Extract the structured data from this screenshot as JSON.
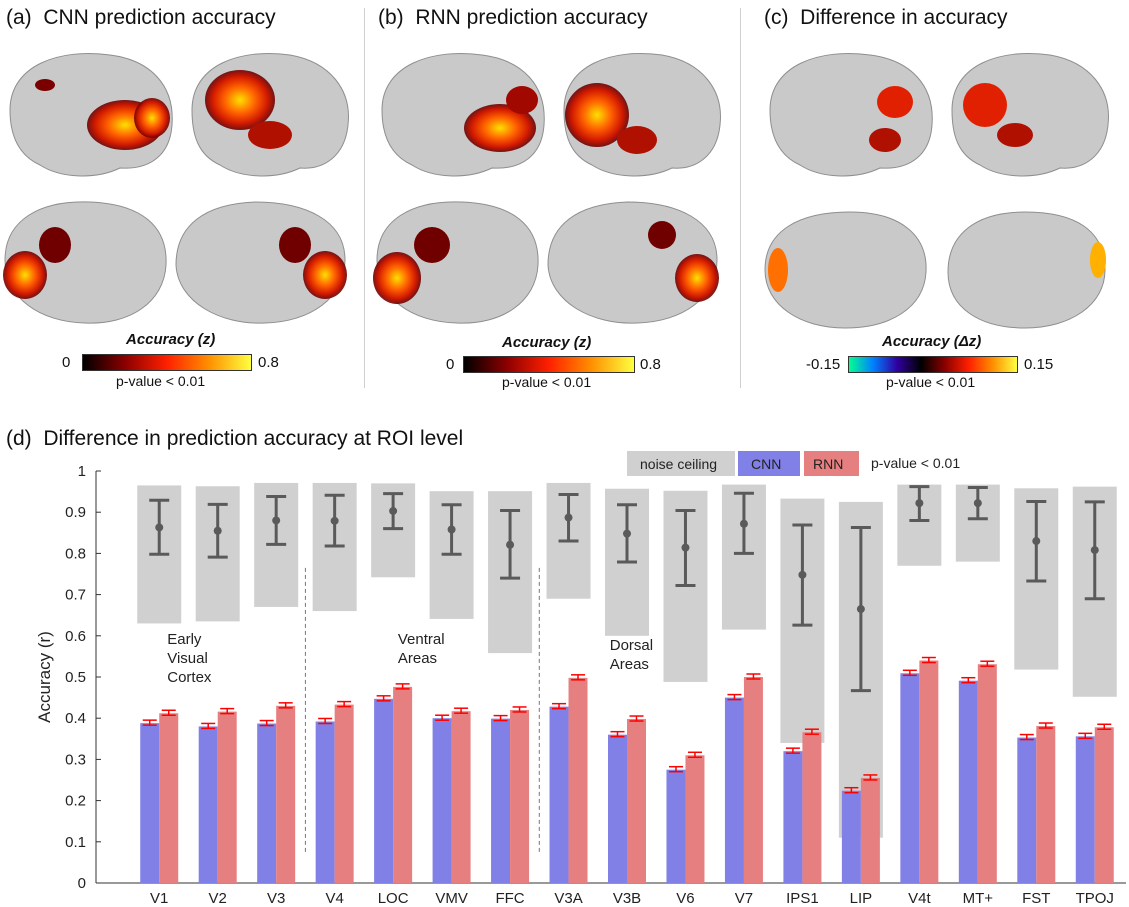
{
  "panels": {
    "a": {
      "label": "(a)",
      "title": "CNN prediction accuracy",
      "cbar_title": "Accuracy (z)",
      "cbar_min": "0",
      "cbar_max": "0.8",
      "pvalue": "p-value < 0.01"
    },
    "b": {
      "label": "(b)",
      "title": "RNN prediction accuracy",
      "cbar_title": "Accuracy (z)",
      "cbar_min": "0",
      "cbar_max": "0.8",
      "pvalue": "p-value < 0.01"
    },
    "c": {
      "label": "(c)",
      "title": "Difference in accuracy",
      "cbar_title": "Accuracy (Δz)",
      "cbar_min": "-0.15",
      "cbar_max": "0.15",
      "pvalue": "p-value < 0.01"
    }
  },
  "colors": {
    "brain": "#c9c9c9",
    "brain_edge": "#8e8e8e",
    "hot_low": "#3a0000",
    "hot_mid": "#e02000",
    "hot_high": "#ffe000",
    "cnn": "#8080e6",
    "rnn": "#e68080",
    "noise": "#d0d0d0",
    "noise_bar": "#5a5a5a",
    "sig": "#ff0000"
  },
  "chart_data": {
    "type": "bar",
    "label": "(d)",
    "title": "Difference in prediction accuracy at ROI level",
    "ylabel": "Accuracy (r)",
    "ylim": [
      0,
      1
    ],
    "yticks": [
      "0",
      "0.1",
      "0.2",
      "0.3",
      "0.4",
      "0.5",
      "0.6",
      "0.7",
      "0.8",
      "0.9",
      "1"
    ],
    "categories": [
      "V1",
      "V2",
      "V3",
      "V4",
      "LOC",
      "VMV",
      "FFC",
      "V3A",
      "V3B",
      "V6",
      "V7",
      "IPS1",
      "LIP",
      "V4t",
      "MT+",
      "FST",
      "TPOJ"
    ],
    "series": [
      {
        "name": "CNN",
        "values": [
          0.388,
          0.38,
          0.387,
          0.392,
          0.447,
          0.4,
          0.399,
          0.428,
          0.36,
          0.275,
          0.45,
          0.32,
          0.224,
          0.509,
          0.491,
          0.353,
          0.356
        ]
      },
      {
        "name": "RNN",
        "values": [
          0.412,
          0.416,
          0.43,
          0.433,
          0.476,
          0.417,
          0.42,
          0.498,
          0.398,
          0.31,
          0.5,
          0.366,
          0.255,
          0.54,
          0.531,
          0.381,
          0.378
        ]
      }
    ],
    "noise_ceiling": {
      "name": "noise ceiling",
      "box_top": [
        0.965,
        0.963,
        0.971,
        0.971,
        0.97,
        0.951,
        0.951,
        0.971,
        0.957,
        0.952,
        0.967,
        0.933,
        0.925,
        0.967,
        0.967,
        0.958,
        0.962
      ],
      "box_bottom": [
        0.63,
        0.635,
        0.67,
        0.66,
        0.742,
        0.641,
        0.558,
        0.69,
        0.6,
        0.488,
        0.615,
        0.34,
        0.11,
        0.77,
        0.78,
        0.518,
        0.452
      ],
      "mean": [
        0.863,
        0.855,
        0.88,
        0.879,
        0.903,
        0.858,
        0.821,
        0.887,
        0.848,
        0.814,
        0.872,
        0.748,
        0.665,
        0.922,
        0.922,
        0.83,
        0.808
      ],
      "err_low": [
        0.798,
        0.791,
        0.822,
        0.818,
        0.86,
        0.798,
        0.74,
        0.83,
        0.779,
        0.722,
        0.8,
        0.626,
        0.467,
        0.88,
        0.884,
        0.733,
        0.69
      ],
      "err_high": [
        0.929,
        0.919,
        0.938,
        0.941,
        0.945,
        0.918,
        0.904,
        0.943,
        0.918,
        0.904,
        0.946,
        0.869,
        0.863,
        0.962,
        0.96,
        0.926,
        0.925
      ]
    },
    "legend": {
      "noise": "noise ceiling",
      "cnn": "CNN",
      "rnn": "RNN",
      "pvalue": "p-value < 0.01",
      "position": "top-right"
    },
    "groups": [
      {
        "label": [
          "Early",
          "Visual",
          "Cortex"
        ]
      },
      {
        "label": [
          "Ventral",
          "Areas"
        ]
      },
      {
        "label": [
          "Dorsal",
          "Areas"
        ]
      }
    ]
  }
}
